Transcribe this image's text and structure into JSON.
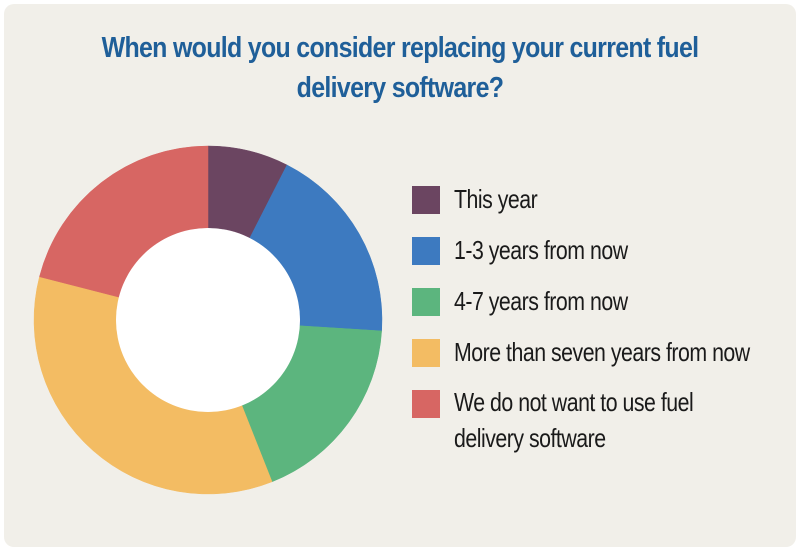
{
  "chart_data": {
    "type": "pie",
    "title": "When would you consider replacing your current fuel delivery software?",
    "title_lines": [
      "When would you consider replacing your current fuel",
      "delivery software?"
    ],
    "donut": true,
    "legend_position": "right",
    "categories": [
      "This year",
      "1-3 years from now",
      "4-7 years from now",
      "More than seven years from now",
      "We do not want to use fuel delivery software"
    ],
    "values": [
      7.5,
      18.5,
      18,
      35,
      21
    ],
    "colors": [
      "#6b4561",
      "#3d7ac0",
      "#5cb57e",
      "#f3bc63",
      "#d76663"
    ]
  }
}
